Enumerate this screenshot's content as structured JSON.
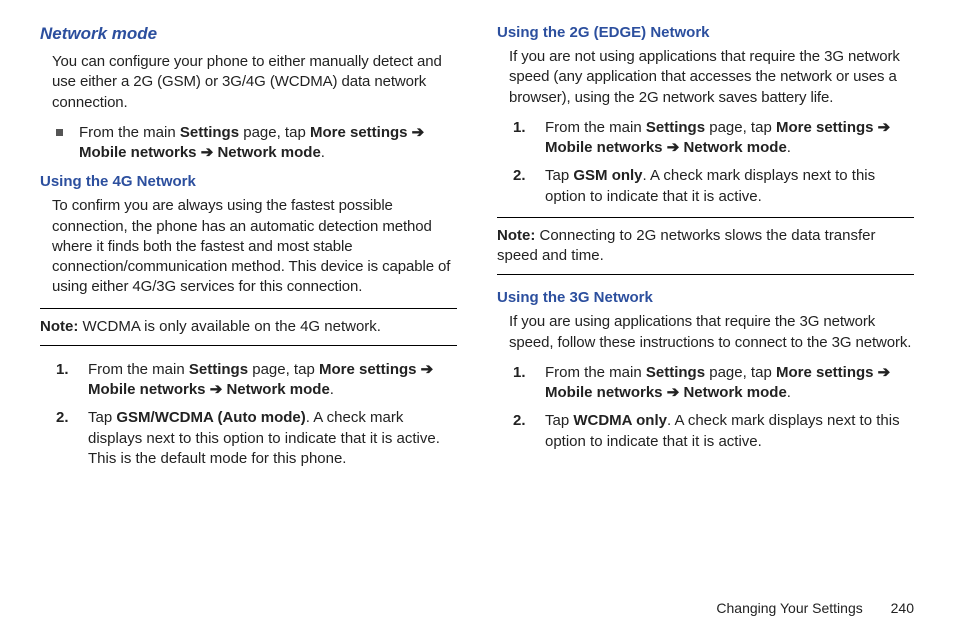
{
  "colors": {
    "heading_blue": "#2c4f9e",
    "body_text": "#222222",
    "rule": "#000000",
    "background": "#ffffff"
  },
  "typography": {
    "body_fontsize_pt": 11,
    "heading_fontsize_pt": 13,
    "subheading_fontsize_pt": 11,
    "font_family": "Arial"
  },
  "left": {
    "section_title": "Network mode",
    "intro": "You can configure your phone to either manually detect and use either a 2G (GSM) or 3G/4G (WCDMA) data network connection.",
    "bullet": {
      "pre": "From the main ",
      "b1": "Settings",
      "mid1": " page, tap ",
      "b2": "More settings",
      "arr1": " ➔ ",
      "b3": "Mobile networks",
      "arr2": " ➔ ",
      "b4": "Network mode",
      "post": "."
    },
    "sub_4g_title": "Using the 4G Network",
    "sub_4g_body": "To confirm you are always using the fastest possible connection, the phone has an automatic detection method where it finds both the fastest and most stable connection/communication method. This device is capable of using either 4G/3G services for this connection.",
    "note1_label": "Note:",
    "note1_text": " WCDMA is only available on the 4G network.",
    "steps_4g": {
      "s1": {
        "num": "1.",
        "pre": "From the main ",
        "b1": "Settings",
        "mid1": " page, tap ",
        "b2": "More settings",
        "arr1": " ➔ ",
        "b3": "Mobile networks",
        "arr2": " ➔ ",
        "b4": "Network mode",
        "post": "."
      },
      "s2": {
        "num": "2.",
        "pre": "Tap ",
        "b1": "GSM/WCDMA (Auto mode)",
        "post": ". A check mark displays next to this option to indicate that it is active. This is the default mode for this phone."
      }
    }
  },
  "right": {
    "sub_2g_title": "Using the 2G (EDGE) Network",
    "sub_2g_body": "If you are not using applications that require the 3G network speed (any application that accesses the network or uses a browser), using the 2G network saves battery life.",
    "steps_2g": {
      "s1": {
        "num": "1.",
        "pre": "From the main ",
        "b1": "Settings",
        "mid1": " page, tap ",
        "b2": "More settings",
        "arr1": " ➔ ",
        "b3": "Mobile networks",
        "arr2": " ➔ ",
        "b4": "Network mode",
        "post": "."
      },
      "s2": {
        "num": "2.",
        "pre": "Tap ",
        "b1": "GSM only",
        "post": ". A check mark displays next to this option to indicate that it is active."
      }
    },
    "note2_label": "Note:",
    "note2_text": " Connecting to 2G networks slows the data transfer speed and time.",
    "sub_3g_title": "Using the 3G Network",
    "sub_3g_body": "If you are using applications that require the 3G network speed, follow these instructions to connect to the 3G network.",
    "steps_3g": {
      "s1": {
        "num": "1.",
        "pre": "From the main ",
        "b1": "Settings",
        "mid1": " page, tap ",
        "b2": "More settings",
        "arr1": " ➔ ",
        "b3": "Mobile networks",
        "arr2": " ➔ ",
        "b4": "Network mode",
        "post": "."
      },
      "s2": {
        "num": "2.",
        "pre": "Tap ",
        "b1": "WCDMA only",
        "post": ". A check mark displays next to this option to indicate that it is active."
      }
    }
  },
  "footer": {
    "label": "Changing Your Settings",
    "page": "240"
  }
}
